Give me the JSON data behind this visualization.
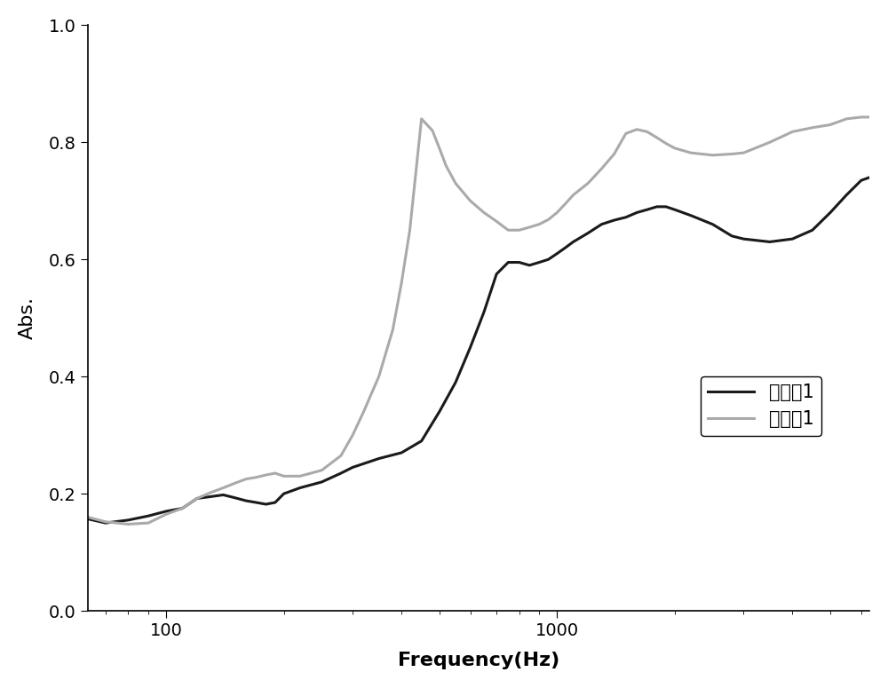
{
  "black_x": [
    63,
    70,
    80,
    90,
    100,
    110,
    120,
    130,
    140,
    150,
    160,
    170,
    180,
    190,
    200,
    220,
    250,
    280,
    300,
    350,
    400,
    450,
    500,
    550,
    600,
    650,
    700,
    750,
    800,
    850,
    900,
    950,
    1000,
    1050,
    1100,
    1200,
    1300,
    1400,
    1500,
    1600,
    1700,
    1800,
    1900,
    2000,
    2200,
    2500,
    2800,
    3000,
    3500,
    4000,
    4500,
    5000,
    5500,
    6000,
    6300
  ],
  "black_y": [
    0.157,
    0.15,
    0.155,
    0.162,
    0.17,
    0.175,
    0.192,
    0.195,
    0.198,
    0.193,
    0.188,
    0.185,
    0.182,
    0.185,
    0.2,
    0.21,
    0.22,
    0.235,
    0.245,
    0.26,
    0.27,
    0.29,
    0.34,
    0.39,
    0.45,
    0.51,
    0.575,
    0.595,
    0.595,
    0.59,
    0.595,
    0.6,
    0.61,
    0.62,
    0.63,
    0.645,
    0.66,
    0.667,
    0.672,
    0.68,
    0.685,
    0.69,
    0.69,
    0.685,
    0.675,
    0.66,
    0.64,
    0.635,
    0.63,
    0.635,
    0.65,
    0.68,
    0.71,
    0.735,
    0.74
  ],
  "gray_x": [
    63,
    70,
    80,
    90,
    100,
    110,
    120,
    130,
    140,
    150,
    160,
    170,
    180,
    190,
    200,
    220,
    250,
    280,
    300,
    320,
    350,
    380,
    400,
    420,
    450,
    480,
    500,
    520,
    550,
    600,
    650,
    700,
    750,
    800,
    850,
    900,
    950,
    1000,
    1050,
    1100,
    1200,
    1300,
    1400,
    1500,
    1600,
    1700,
    1800,
    1900,
    2000,
    2200,
    2500,
    2800,
    3000,
    3500,
    4000,
    4500,
    5000,
    5500,
    6000,
    6300
  ],
  "gray_y": [
    0.16,
    0.152,
    0.148,
    0.15,
    0.165,
    0.175,
    0.192,
    0.202,
    0.21,
    0.218,
    0.225,
    0.228,
    0.232,
    0.235,
    0.23,
    0.23,
    0.24,
    0.265,
    0.3,
    0.34,
    0.4,
    0.48,
    0.56,
    0.65,
    0.84,
    0.82,
    0.79,
    0.76,
    0.73,
    0.7,
    0.68,
    0.665,
    0.65,
    0.65,
    0.655,
    0.66,
    0.668,
    0.68,
    0.695,
    0.71,
    0.73,
    0.755,
    0.78,
    0.815,
    0.822,
    0.818,
    0.808,
    0.798,
    0.79,
    0.782,
    0.778,
    0.78,
    0.782,
    0.8,
    0.818,
    0.825,
    0.83,
    0.84,
    0.843,
    0.843
  ],
  "black_color": "#1a1a1a",
  "gray_color": "#aaaaaa",
  "line_width": 2.2,
  "xlabel": "Frequency(Hz)",
  "ylabel": "Abs.",
  "xlabel_fontsize": 16,
  "ylabel_fontsize": 16,
  "tick_fontsize": 14,
  "legend_labels": [
    "对比例1",
    "实施例1"
  ],
  "legend_fontsize": 15,
  "xlim": [
    63,
    6300
  ],
  "ylim": [
    0.0,
    1.0
  ],
  "yticks": [
    0.0,
    0.2,
    0.4,
    0.6,
    0.8,
    1.0
  ],
  "background_color": "#ffffff"
}
